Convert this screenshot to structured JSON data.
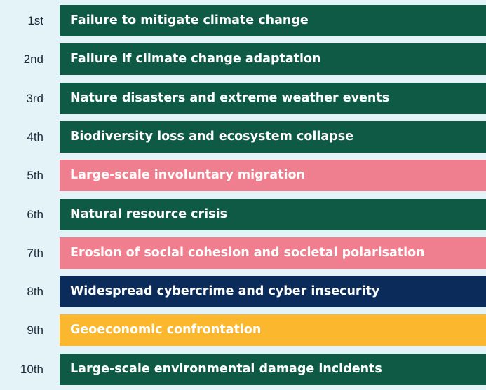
{
  "items": [
    {
      "rank": "1st",
      "label": "Failure to mitigate climate change",
      "color": "#0f5a45"
    },
    {
      "rank": "2nd",
      "label": "Failure if climate change adaptation",
      "color": "#0f5a45"
    },
    {
      "rank": "3rd",
      "label": "Nature disasters and extreme weather events",
      "color": "#0f5a45"
    },
    {
      "rank": "4th",
      "label": "Biodiversity loss and ecosystem collapse",
      "color": "#0f5a45"
    },
    {
      "rank": "5th",
      "label": "Large-scale involuntary migration",
      "color": "#ef7f8e"
    },
    {
      "rank": "6th",
      "label": "Natural resource crisis",
      "color": "#0f5a45"
    },
    {
      "rank": "7th",
      "label": "Erosion of social cohesion and societal polarisation",
      "color": "#ef7f8e"
    },
    {
      "rank": "8th",
      "label": "Widespread cybercrime and cyber insecurity",
      "color": "#0b2c5a"
    },
    {
      "rank": "9th",
      "label": "Geoeconomic confrontation",
      "color": "#fbb82e"
    },
    {
      "rank": "10th",
      "label": "Large-scale environmental damage incidents",
      "color": "#0f5a45"
    }
  ]
}
